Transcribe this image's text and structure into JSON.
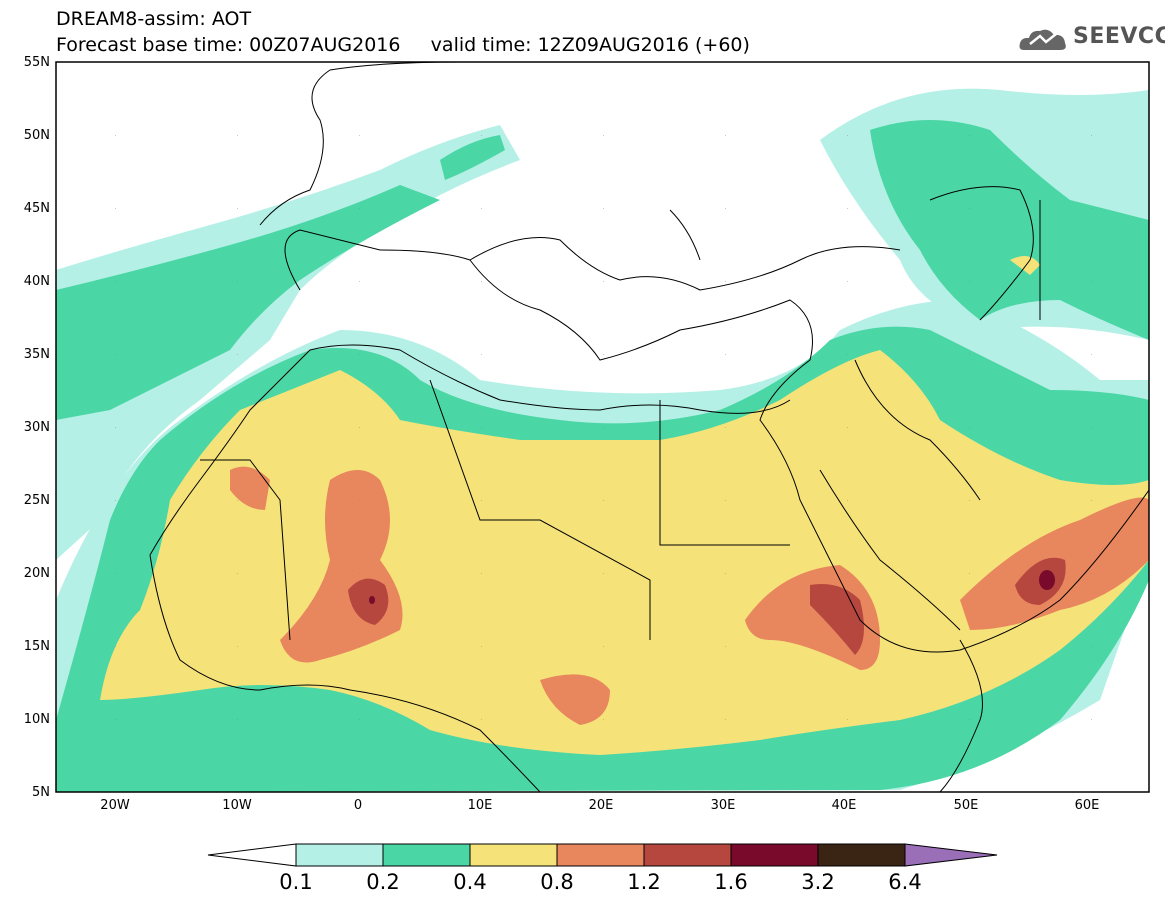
{
  "title_line1": "DREAM8-assim: AOT",
  "title_line2": "Forecast base time: 00Z07AUG2016     valid time: 12Z09AUG2016 (+60)",
  "logo_text": "SEEVCCC",
  "map": {
    "lon_range": [
      -25,
      65
    ],
    "lat_range": [
      5,
      55
    ],
    "lat_labels": [
      "5N",
      "10N",
      "15N",
      "20N",
      "25N",
      "30N",
      "35N",
      "40N",
      "45N",
      "50N",
      "55N"
    ],
    "lon_labels": [
      "20W",
      "10W",
      "0",
      "10E",
      "20E",
      "30E",
      "40E",
      "50E",
      "60E"
    ]
  },
  "colorbar": {
    "labels": [
      "0.1",
      "0.2",
      "0.4",
      "0.8",
      "1.2",
      "1.6",
      "3.2",
      "6.4"
    ],
    "colors": [
      "#b4f0e6",
      "#4bd6a5",
      "#f5e37a",
      "#e8865e",
      "#b5473f",
      "#7a0a2c",
      "#3a2414",
      "#9a6fb8"
    ]
  }
}
